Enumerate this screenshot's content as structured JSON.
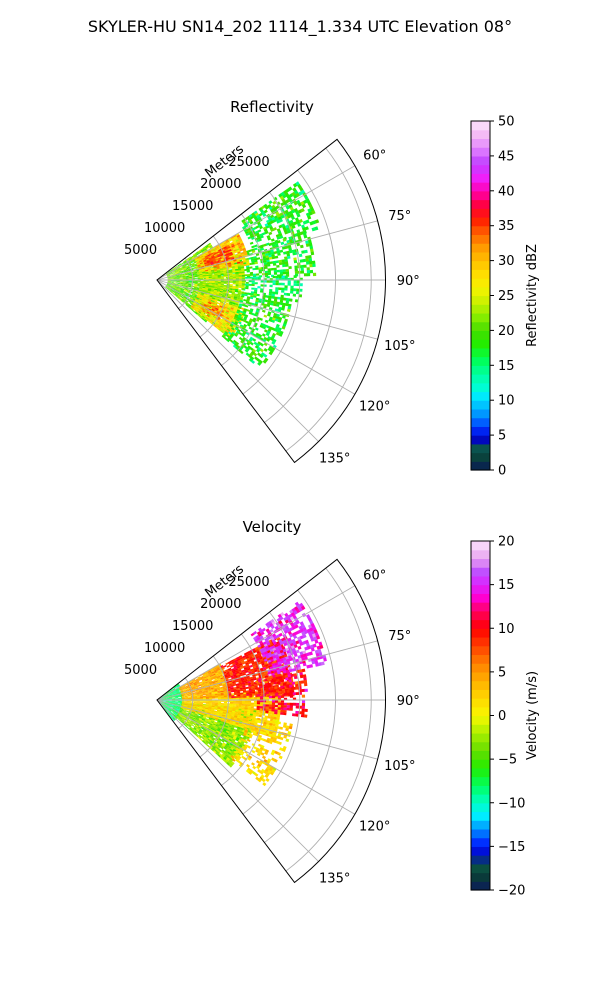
{
  "figure": {
    "title": "SKYLER-HU  SN14_202  1114_1.334 UTC Elevation 08°"
  },
  "chart_data": [
    {
      "type": "heatmap",
      "subtype": "polar-sector (radar PPI)",
      "title": "Reflectivity",
      "radial_label": "Meters",
      "theta_range_deg": [
        52,
        143
      ],
      "theta_ticks": [
        "60°",
        "75°",
        "90°",
        "105°",
        "120°",
        "135°"
      ],
      "theta_tick_values": [
        60,
        75,
        90,
        105,
        120,
        135
      ],
      "r_range": [
        0,
        32000
      ],
      "r_ticks": [
        "5000",
        "10000",
        "15000",
        "20000",
        "25000"
      ],
      "r_tick_values": [
        5000,
        10000,
        15000,
        20000,
        25000
      ],
      "grid": true,
      "colorbar": {
        "label": "Reflectivity dBZ",
        "min": 0,
        "max": 50,
        "ticks": [
          0,
          5,
          10,
          15,
          20,
          25,
          30,
          35,
          40,
          45,
          50
        ],
        "tick_labels": [
          "0",
          "5",
          "10",
          "15",
          "20",
          "25",
          "30",
          "35",
          "40",
          "45",
          "50"
        ],
        "stops": [
          {
            "v": 0,
            "c": "#08195a"
          },
          {
            "v": 1.5,
            "c": "#0a3a3a"
          },
          {
            "v": 3,
            "c": "#0b5a44"
          },
          {
            "v": 4.5,
            "c": "#0000c8"
          },
          {
            "v": 6,
            "c": "#0030ff"
          },
          {
            "v": 7.5,
            "c": "#0080ff"
          },
          {
            "v": 9,
            "c": "#00b8ff"
          },
          {
            "v": 10.5,
            "c": "#00e8ff"
          },
          {
            "v": 12,
            "c": "#00ffd0"
          },
          {
            "v": 14,
            "c": "#00ff9a"
          },
          {
            "v": 16,
            "c": "#00ff50"
          },
          {
            "v": 18,
            "c": "#22ee00"
          },
          {
            "v": 20,
            "c": "#44dd00"
          },
          {
            "v": 22,
            "c": "#88ee00"
          },
          {
            "v": 24,
            "c": "#c8f000"
          },
          {
            "v": 26,
            "c": "#f4f400"
          },
          {
            "v": 28,
            "c": "#ffe000"
          },
          {
            "v": 30,
            "c": "#ffc000"
          },
          {
            "v": 32,
            "c": "#ff9a00"
          },
          {
            "v": 34,
            "c": "#ff6000"
          },
          {
            "v": 36,
            "c": "#ff1a00"
          },
          {
            "v": 38,
            "c": "#ff0040"
          },
          {
            "v": 40,
            "c": "#ff00b0"
          },
          {
            "v": 42,
            "c": "#ee22ff"
          },
          {
            "v": 44,
            "c": "#c040ff"
          },
          {
            "v": 46,
            "c": "#e080ff"
          },
          {
            "v": 48,
            "c": "#f4b8f4"
          },
          {
            "v": 50,
            "c": "#fde6fd"
          }
        ]
      },
      "data_summary": "Echo fills roughly 55–130° out to ~20000 m (farthest ~24000 m near 60–70°); mostly 15–25 dBZ, two 30–38 dBZ cores near 70°/10000 m and 115°/10000 m.",
      "echo_cells": [
        {
          "theta": [
            55,
            72
          ],
          "r": [
            14000,
            24000
          ],
          "v": 18,
          "sd": 3,
          "fill": 0.6
        },
        {
          "theta": [
            72,
            88
          ],
          "r": [
            8000,
            22000
          ],
          "v": 18,
          "sd": 3,
          "fill": 0.65
        },
        {
          "theta": [
            88,
            98
          ],
          "r": [
            12000,
            20000
          ],
          "v": 16,
          "sd": 3,
          "fill": 0.5
        },
        {
          "theta": [
            55,
            130
          ],
          "r": [
            1500,
            9000
          ],
          "v": 21,
          "sd": 3,
          "fill": 0.9
        },
        {
          "theta": [
            60,
            80
          ],
          "r": [
            6000,
            13000
          ],
          "v": 29,
          "sd": 4,
          "fill": 0.95
        },
        {
          "theta": [
            108,
            128
          ],
          "r": [
            6000,
            13000
          ],
          "v": 27,
          "sd": 4,
          "fill": 0.95
        },
        {
          "theta": [
            80,
            108
          ],
          "r": [
            6000,
            12000
          ],
          "v": 23,
          "sd": 3,
          "fill": 0.9
        },
        {
          "theta": [
            98,
            130
          ],
          "r": [
            12000,
            19000
          ],
          "v": 18,
          "sd": 3,
          "fill": 0.55
        },
        {
          "theta": [
            64,
            74
          ],
          "r": [
            7000,
            11000
          ],
          "v": 35,
          "sd": 2,
          "fill": 0.7
        },
        {
          "theta": [
            112,
            122
          ],
          "r": [
            7000,
            10000
          ],
          "v": 33,
          "sd": 2,
          "fill": 0.6
        }
      ]
    },
    {
      "type": "heatmap",
      "subtype": "polar-sector (radar PPI)",
      "title": "Velocity",
      "radial_label": "Meters",
      "theta_range_deg": [
        52,
        143
      ],
      "theta_ticks": [
        "60°",
        "75°",
        "90°",
        "105°",
        "120°",
        "135°"
      ],
      "theta_tick_values": [
        60,
        75,
        90,
        105,
        120,
        135
      ],
      "r_range": [
        0,
        32000
      ],
      "r_ticks": [
        "5000",
        "10000",
        "15000",
        "20000",
        "25000"
      ],
      "r_tick_values": [
        5000,
        10000,
        15000,
        20000,
        25000
      ],
      "grid": true,
      "colorbar": {
        "label": "Velocity (m/s)",
        "min": -20,
        "max": 20,
        "ticks": [
          -20,
          -15,
          -10,
          -5,
          0,
          5,
          10,
          15,
          20
        ],
        "tick_labels": [
          "−20",
          "−15",
          "−10",
          "−5",
          "0",
          "5",
          "10",
          "15",
          "20"
        ],
        "stops": [
          {
            "v": -20,
            "c": "#0b1a5c"
          },
          {
            "v": -18.5,
            "c": "#0a3a3a"
          },
          {
            "v": -17,
            "c": "#0b5a44"
          },
          {
            "v": -16,
            "c": "#0000c8"
          },
          {
            "v": -14.5,
            "c": "#0030ff"
          },
          {
            "v": -13,
            "c": "#0090ff"
          },
          {
            "v": -11.5,
            "c": "#00ecff"
          },
          {
            "v": -10,
            "c": "#00ffc8"
          },
          {
            "v": -8,
            "c": "#00ff60"
          },
          {
            "v": -6,
            "c": "#22ee00"
          },
          {
            "v": -4,
            "c": "#66dd00"
          },
          {
            "v": -2,
            "c": "#aaf000"
          },
          {
            "v": 0,
            "c": "#f8f800"
          },
          {
            "v": 2,
            "c": "#ffd800"
          },
          {
            "v": 4,
            "c": "#ffb000"
          },
          {
            "v": 6,
            "c": "#ff8000"
          },
          {
            "v": 8,
            "c": "#ff4000"
          },
          {
            "v": 10,
            "c": "#ff0000"
          },
          {
            "v": 12,
            "c": "#ff0060"
          },
          {
            "v": 13.5,
            "c": "#ff00d0"
          },
          {
            "v": 15,
            "c": "#dd22ff"
          },
          {
            "v": 16.5,
            "c": "#c050ff"
          },
          {
            "v": 18,
            "c": "#e8a0f0"
          },
          {
            "v": 20,
            "c": "#fde6fd"
          }
        ]
      },
      "data_summary": "Same echo footprint; ~−8 m/s near the radar, 0–5 m/s across the sector, 8–12 m/s at 65–85° beyond 10000 m and 13–18 m/s near 60–75° at 18000–24000 m.",
      "echo_cells": [
        {
          "theta": [
            52,
            140
          ],
          "r": [
            0,
            3500
          ],
          "v": -8,
          "sd": 2,
          "fill": 0.95
        },
        {
          "theta": [
            95,
            132
          ],
          "r": [
            3500,
            14000
          ],
          "v": -3,
          "sd": 2,
          "fill": 0.95
        },
        {
          "theta": [
            85,
            108
          ],
          "r": [
            3500,
            17000
          ],
          "v": 2,
          "sd": 1.5,
          "fill": 0.9
        },
        {
          "theta": [
            60,
            88
          ],
          "r": [
            3500,
            10000
          ],
          "v": 4,
          "sd": 2,
          "fill": 0.95
        },
        {
          "theta": [
            62,
            88
          ],
          "r": [
            10000,
            19000
          ],
          "v": 9,
          "sd": 2,
          "fill": 0.9
        },
        {
          "theta": [
            55,
            78
          ],
          "r": [
            16000,
            24000
          ],
          "v": 15,
          "sd": 2,
          "fill": 0.7
        },
        {
          "theta": [
            78,
            96
          ],
          "r": [
            14000,
            21000
          ],
          "v": 10,
          "sd": 3,
          "fill": 0.5
        },
        {
          "theta": [
            100,
            128
          ],
          "r": [
            13000,
            19000
          ],
          "v": 2,
          "sd": 2,
          "fill": 0.45
        }
      ]
    }
  ]
}
